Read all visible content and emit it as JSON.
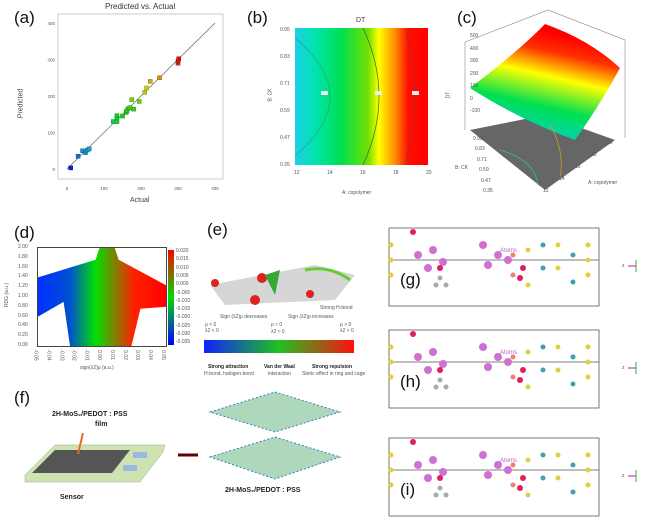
{
  "panels": {
    "a": {
      "label": "(a)"
    },
    "b": {
      "label": "(b)"
    },
    "c": {
      "label": "(c)"
    },
    "d": {
      "label": "(d)"
    },
    "e": {
      "label": "(e)"
    },
    "f": {
      "label": "(f)"
    },
    "g": {
      "label": "(g)"
    },
    "h": {
      "label": "(h)"
    },
    "i": {
      "label": "(i)"
    }
  },
  "chart_data": [
    {
      "panel": "a",
      "type": "scatter",
      "title": "Predicted vs. Actual",
      "xlabel": "Actual",
      "ylabel": "Predicted",
      "xlim": [
        0,
        400
      ],
      "ylim": [
        0,
        400
      ],
      "xticks": [
        "0",
        "100",
        "200",
        "300",
        "400"
      ],
      "yticks": [
        "0",
        "100",
        "200",
        "300",
        "400"
      ],
      "reference_line": "y = x",
      "points": [
        [
          10,
          3
        ],
        [
          30,
          35
        ],
        [
          42,
          50
        ],
        [
          50,
          45
        ],
        [
          55,
          52
        ],
        [
          60,
          55
        ],
        [
          125,
          130
        ],
        [
          135,
          130
        ],
        [
          135,
          140
        ],
        [
          135,
          146
        ],
        [
          150,
          145
        ],
        [
          160,
          155
        ],
        [
          162,
          160
        ],
        [
          165,
          165
        ],
        [
          170,
          168
        ],
        [
          175,
          190
        ],
        [
          180,
          164
        ],
        [
          195,
          185
        ],
        [
          210,
          210
        ],
        [
          215,
          222
        ],
        [
          225,
          240
        ],
        [
          250,
          250
        ],
        [
          300,
          290
        ],
        [
          300,
          296
        ],
        [
          302,
          302
        ]
      ]
    },
    {
      "panel": "b",
      "type": "heatmap",
      "title": "DT",
      "xlabel": "A: copolymer",
      "ylabel": "B: CK",
      "xticks": [
        "12",
        "14",
        "16",
        "18",
        "20"
      ],
      "yticks": [
        "0.35",
        "0.47",
        "0.59",
        "0.71",
        "0.83",
        "0.95"
      ],
      "colormap": [
        "#00c8ff",
        "#00e060",
        "#ffff00",
        "#ff0000"
      ]
    },
    {
      "panel": "c",
      "type": "surface",
      "zlabel": "DT",
      "xlabel": "A: copolymer",
      "ylabel": "B: CK",
      "zticks": [
        "-100",
        "0",
        "100",
        "200",
        "300",
        "400",
        "500"
      ],
      "xticks": [
        "12",
        "14",
        "16",
        "18",
        "20"
      ],
      "yticks": [
        "0.35",
        "0.47",
        "0.59",
        "0.71",
        "0.83",
        "0.95"
      ]
    },
    {
      "panel": "d",
      "type": "scatter",
      "xlabel": "sign(λ2)ρ (a.u.)",
      "ylabel": "RDG (a.u.)",
      "xlim": [
        -0.05,
        0.05
      ],
      "ylim": [
        0,
        2
      ],
      "xticks": [
        "-0.05",
        "-0.04",
        "-0.03",
        "-0.02",
        "-0.01",
        "0.00",
        "0.01",
        "0.02",
        "0.03",
        "0.04",
        "0.05"
      ],
      "yticks": [
        "2.00",
        "1.80",
        "1.60",
        "1.40",
        "1.20",
        "1.00",
        "0.80",
        "0.60",
        "0.40",
        "0.20",
        "0.00"
      ],
      "colorbar_ticks": [
        "0.020",
        "0.015",
        "0.010",
        "0.005",
        "0.000",
        "-0.005",
        "-0.010",
        "-0.015",
        "-0.020",
        "-0.025",
        "-0.030",
        "-0.035"
      ]
    }
  ],
  "e": {
    "strong_hbond": "Strong H-bond",
    "left_cond": "ρ < 0\nλ2 < 0",
    "mid_left": "Sign (λ2)ρ decreases",
    "mid_cond": "ρ ≈ 0",
    "mid_l2": "λ2 ≈ 0",
    "mid_right": "Sign (λ2)ρ increases",
    "right_cond": "ρ > 0\nλ2 > 0",
    "cats": [
      {
        "title": "Strong attraction",
        "sub": "H-bond, halogen-bond"
      },
      {
        "title": "Van der Waal",
        "sub": "interaction"
      },
      {
        "title": "Strong repulsion",
        "sub": "Steric effect in ring and cage"
      }
    ]
  },
  "f": {
    "film_label": "2H-MoS₂/PEDOT : PSS",
    "film_sub": "film",
    "sensor_label": "Sensor",
    "structure_label": "2H-MoS₂/PEDOT : PSS"
  },
  "atoms": {
    "label": "Atoms",
    "axis_z": "z"
  }
}
